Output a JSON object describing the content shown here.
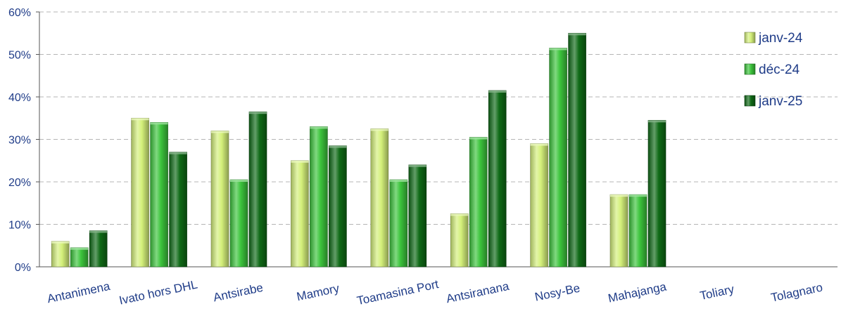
{
  "chart_data": {
    "type": "bar",
    "categories": [
      "Antanimena",
      "Ivato hors DHL",
      "Antsirabe",
      "Mamory",
      "Toamasina Port",
      "Antsiranana",
      "Nosy-Be",
      "Mahajanga",
      "Toliary",
      "Tolagnaro"
    ],
    "series": [
      {
        "name": "janv-24",
        "color": "#d4f07a",
        "values": [
          6,
          35,
          32,
          25,
          32.5,
          12.5,
          29,
          17,
          0,
          0
        ]
      },
      {
        "name": "déc-24",
        "color": "#3cc43c",
        "values": [
          4.5,
          34,
          20.5,
          33,
          20.5,
          30.5,
          51.5,
          17,
          0,
          0
        ]
      },
      {
        "name": "janv-25",
        "color": "#0f6a16",
        "values": [
          8.5,
          27,
          36.5,
          28.5,
          24,
          41.5,
          55,
          34.5,
          0,
          0
        ]
      }
    ],
    "ylim": [
      0,
      60
    ],
    "yticks": [
      "0%",
      "10%",
      "20%",
      "30%",
      "40%",
      "50%",
      "60%"
    ],
    "grid": true,
    "legend_position": "top-right",
    "title": "",
    "xlabel": "",
    "ylabel": ""
  }
}
